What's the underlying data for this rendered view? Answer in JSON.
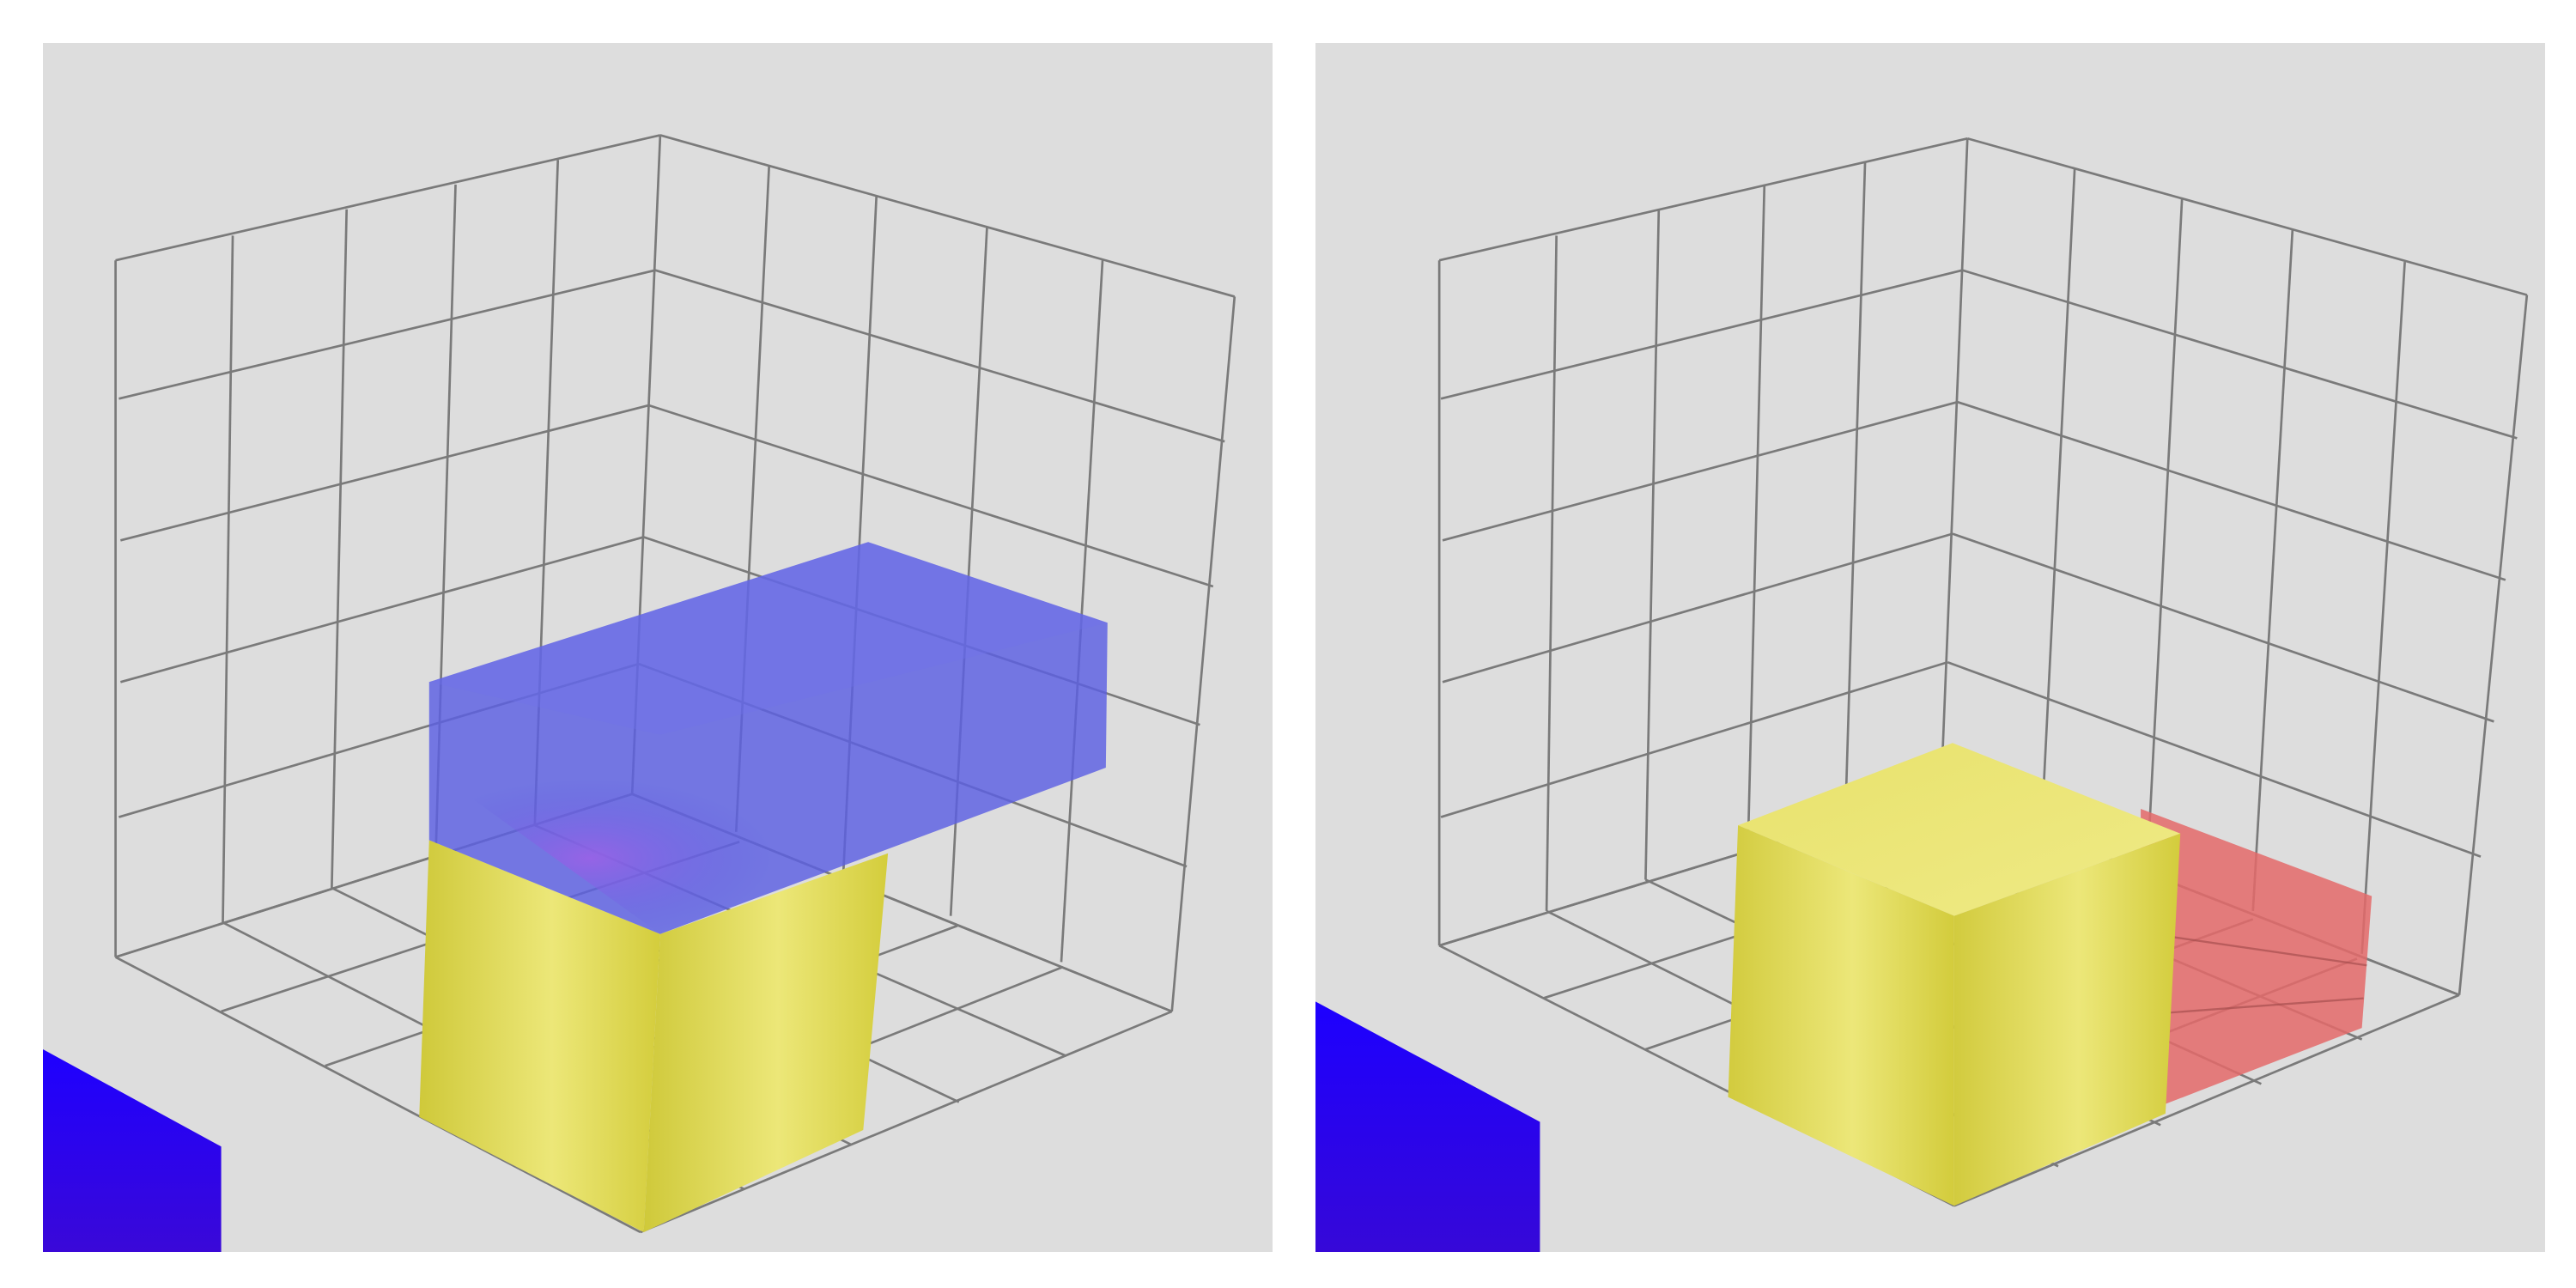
{
  "colors": {
    "background": "#ffffff",
    "viewport": "#dddddd",
    "grid_line": "#7a7a7a",
    "cube_yellow": "#e6e06a",
    "cube_yellow_dark": "#cfc83a",
    "preview_blue": "#5b5fe3",
    "preview_red": "#e46a6a",
    "palette_blue": "#1e00f0"
  },
  "grid": {
    "divisions": 5
  },
  "panels": [
    {
      "name": "viewport-left",
      "placed_piece": {
        "color_name": "yellow",
        "shape": "cube"
      },
      "preview_piece": {
        "color_name": "blue",
        "shape": "slab"
      },
      "palette_piece": {
        "color_name": "blue"
      }
    },
    {
      "name": "viewport-right",
      "placed_piece": {
        "color_name": "yellow",
        "shape": "cube"
      },
      "preview_piece": {
        "color_name": "red",
        "shape": "slab"
      },
      "palette_piece": {
        "color_name": "blue"
      }
    }
  ]
}
